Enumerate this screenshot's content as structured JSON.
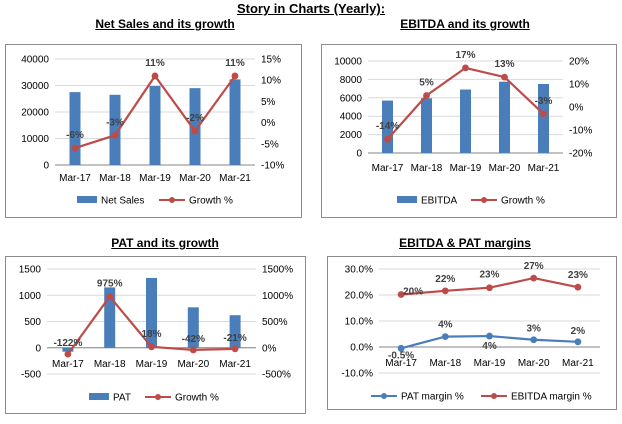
{
  "page_title": "Story in Charts (Yearly):",
  "chart_data": [
    {
      "type": "bar",
      "title": "Net Sales and its growth",
      "categories": [
        "Mar-17",
        "Mar-18",
        "Mar-19",
        "Mar-20",
        "Mar-21"
      ],
      "series": [
        {
          "name": "Net Sales",
          "kind": "bar",
          "axis": "left",
          "color": "#4a7ebb",
          "values": [
            27500,
            26500,
            29800,
            29000,
            32300
          ]
        },
        {
          "name": "Growth %",
          "kind": "line",
          "axis": "right",
          "color": "#be4b48",
          "values": [
            -6,
            -3,
            11,
            -2,
            11
          ],
          "labels": [
            "-6%",
            "-3%",
            "11%",
            "-2%",
            "11%"
          ]
        }
      ],
      "left_axis": {
        "min": 0,
        "max": 40000,
        "ticks": [
          0,
          10000,
          20000,
          30000,
          40000
        ],
        "tick_labels": [
          "0",
          "10000",
          "20000",
          "30000",
          "40000"
        ]
      },
      "right_axis": {
        "min": -10,
        "max": 15,
        "ticks": [
          -10,
          -5,
          0,
          5,
          10,
          15
        ],
        "tick_labels": [
          "-10%",
          "-5%",
          "0%",
          "5%",
          "10%",
          "15%"
        ]
      },
      "legend": [
        "Net Sales",
        "Growth %"
      ]
    },
    {
      "type": "bar",
      "title": "EBITDA and its growth",
      "categories": [
        "Mar-17",
        "Mar-18",
        "Mar-19",
        "Mar-20",
        "Mar-21"
      ],
      "series": [
        {
          "name": "EBITDA",
          "kind": "bar",
          "axis": "left",
          "color": "#4a7ebb",
          "values": [
            5700,
            5950,
            6900,
            7750,
            7500
          ]
        },
        {
          "name": "Growth %",
          "kind": "line",
          "axis": "right",
          "color": "#be4b48",
          "values": [
            -14,
            5,
            17,
            13,
            -3
          ],
          "labels": [
            "-14%",
            "5%",
            "17%",
            "13%",
            "-3%"
          ]
        }
      ],
      "left_axis": {
        "min": 0,
        "max": 10000,
        "ticks": [
          0,
          2000,
          4000,
          6000,
          8000,
          10000
        ],
        "tick_labels": [
          "0",
          "2000",
          "4000",
          "6000",
          "8000",
          "10000"
        ]
      },
      "right_axis": {
        "min": -20,
        "max": 20,
        "ticks": [
          -20,
          -10,
          0,
          10,
          20
        ],
        "tick_labels": [
          "-20%",
          "-10%",
          "0%",
          "10%",
          "20%"
        ]
      },
      "legend": [
        "EBITDA",
        "Growth %"
      ]
    },
    {
      "type": "bar",
      "title": "PAT and its growth",
      "categories": [
        "Mar-17",
        "Mar-18",
        "Mar-19",
        "Mar-20",
        "Mar-21"
      ],
      "series": [
        {
          "name": "PAT",
          "kind": "bar",
          "axis": "left",
          "color": "#4a7ebb",
          "values": [
            -75,
            1150,
            1330,
            770,
            620
          ]
        },
        {
          "name": "Growth %",
          "kind": "line",
          "axis": "right",
          "color": "#be4b48",
          "values": [
            -122,
            975,
            18,
            -42,
            -21
          ],
          "labels": [
            "-122%",
            "975%",
            "18%",
            "-42%",
            "-21%"
          ]
        }
      ],
      "left_axis": {
        "min": -500,
        "max": 1500,
        "ticks": [
          -500,
          0,
          500,
          1000,
          1500
        ],
        "tick_labels": [
          "-500",
          "0",
          "500",
          "1000",
          "1500"
        ]
      },
      "right_axis": {
        "min": -500,
        "max": 1500,
        "ticks": [
          -500,
          0,
          500,
          1000,
          1500
        ],
        "tick_labels": [
          "-500%",
          "0%",
          "500%",
          "1000%",
          "1500%"
        ]
      },
      "legend": [
        "PAT",
        "Growth %"
      ]
    },
    {
      "type": "line",
      "title": "EBITDA & PAT margins",
      "categories": [
        "Mar-17",
        "Mar-18",
        "Mar-19",
        "Mar-20",
        "Mar-21"
      ],
      "series": [
        {
          "name": "PAT margin %",
          "kind": "line",
          "axis": "left",
          "color": "#4a7ebb",
          "values": [
            -0.5,
            4,
            4.2,
            2.8,
            2
          ],
          "labels": [
            "-0.5%",
            "4%",
            "4%",
            "3%",
            "2%"
          ]
        },
        {
          "name": "EBITDA margin %",
          "kind": "line",
          "axis": "left",
          "color": "#be4b48",
          "values": [
            20.2,
            21.6,
            22.8,
            26.5,
            23
          ],
          "labels": [
            "20%",
            "22%",
            "23%",
            "27%",
            "23%"
          ]
        }
      ],
      "left_axis": {
        "min": -10,
        "max": 30,
        "ticks": [
          -10,
          0,
          10,
          20,
          30
        ],
        "tick_labels": [
          "-10.0%",
          "0.0%",
          "10.0%",
          "20.0%",
          "30.0%"
        ]
      },
      "legend": [
        "PAT margin %",
        "EBITDA margin %"
      ]
    }
  ]
}
